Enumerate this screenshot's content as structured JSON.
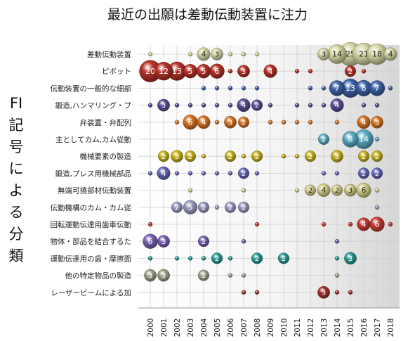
{
  "chart_data": {
    "type": "bubble",
    "title": "最近の出願は差動伝動装置に注力",
    "ylabel": "FI記号による分類",
    "years": [
      "2000",
      "2001",
      "2002",
      "2003",
      "2004",
      "2005",
      "2006",
      "2007",
      "2008",
      "2009",
      "2010",
      "2011",
      "2012",
      "2013",
      "2014",
      "2015",
      "2016",
      "2017",
      "2018"
    ],
    "categories": [
      "差動伝動装置",
      "ピボット",
      "伝動装置の一般的な細部",
      "鍛造,ハンマリング・プ",
      "弁装置・弁配列",
      "主としてカム,カム従動",
      "機械要素の製造",
      "鍛造,プレス用機械部品",
      "無端可撓部材伝動装置",
      "伝動機構のカム・カム従",
      "回転運動伝達用歯車伝動",
      "物体・部品を結合するた",
      "運動伝達用の歯・摩擦面",
      "他の特定物品の製造",
      "レーザービームによる加"
    ],
    "colors": [
      "#d6d8a6",
      "#b83328",
      "#3d62a8",
      "#5a4f98",
      "#d87424",
      "#5caec4",
      "#c8b41c",
      "#6668b8",
      "#d4d08a",
      "#9a9ac2",
      "#c83c34",
      "#7a62b4",
      "#2c9c94",
      "#a2a28a",
      "#a43232"
    ],
    "values": [
      [
        1,
        0,
        0,
        1,
        4,
        3,
        1,
        1,
        1,
        0,
        0,
        0,
        0,
        3,
        14,
        25,
        21,
        18,
        4
      ],
      [
        20,
        12,
        13,
        5,
        5,
        6,
        1,
        3,
        0,
        4,
        0,
        1,
        1,
        0,
        0,
        2,
        1,
        0,
        0
      ],
      [
        0,
        0,
        0,
        0,
        1,
        1,
        1,
        1,
        1,
        0,
        0,
        0,
        1,
        1,
        7,
        13,
        8,
        7,
        1
      ],
      [
        1,
        3,
        1,
        1,
        1,
        1,
        1,
        4,
        2,
        1,
        0,
        1,
        1,
        1,
        4,
        0,
        1,
        1,
        0
      ],
      [
        0,
        0,
        1,
        6,
        4,
        1,
        3,
        2,
        0,
        1,
        1,
        1,
        1,
        0,
        1,
        0,
        4,
        3,
        0
      ],
      [
        0,
        0,
        0,
        0,
        0,
        0,
        0,
        0,
        0,
        0,
        0,
        0,
        0,
        2,
        0,
        8,
        14,
        1,
        0
      ],
      [
        0,
        2,
        3,
        2,
        1,
        0,
        2,
        1,
        2,
        0,
        1,
        1,
        2,
        0,
        3,
        0,
        2,
        2,
        0
      ],
      [
        1,
        4,
        1,
        1,
        1,
        1,
        1,
        2,
        1,
        0,
        0,
        0,
        0,
        1,
        1,
        0,
        2,
        2,
        0
      ],
      [
        0,
        0,
        0,
        1,
        0,
        0,
        0,
        1,
        0,
        0,
        0,
        1,
        2,
        4,
        2,
        3,
        6,
        1,
        0
      ],
      [
        0,
        0,
        2,
        5,
        2,
        1,
        2,
        2,
        0,
        0,
        0,
        0,
        0,
        0,
        0,
        0,
        0,
        1,
        0
      ],
      [
        1,
        0,
        0,
        0,
        0,
        0,
        0,
        0,
        1,
        0,
        0,
        0,
        0,
        1,
        0,
        1,
        4,
        6,
        1
      ],
      [
        6,
        3,
        0,
        0,
        2,
        0,
        0,
        1,
        0,
        0,
        0,
        0,
        0,
        0,
        1,
        0,
        0,
        0,
        0
      ],
      [
        1,
        0,
        1,
        1,
        1,
        2,
        1,
        0,
        2,
        0,
        2,
        0,
        0,
        0,
        1,
        3,
        0,
        0,
        0
      ],
      [
        3,
        3,
        0,
        0,
        2,
        0,
        1,
        1,
        0,
        0,
        0,
        0,
        0,
        0,
        1,
        0,
        0,
        0,
        0
      ],
      [
        0,
        0,
        0,
        0,
        0,
        0,
        0,
        1,
        1,
        0,
        0,
        0,
        0,
        3,
        1,
        1,
        0,
        0,
        0
      ]
    ]
  }
}
